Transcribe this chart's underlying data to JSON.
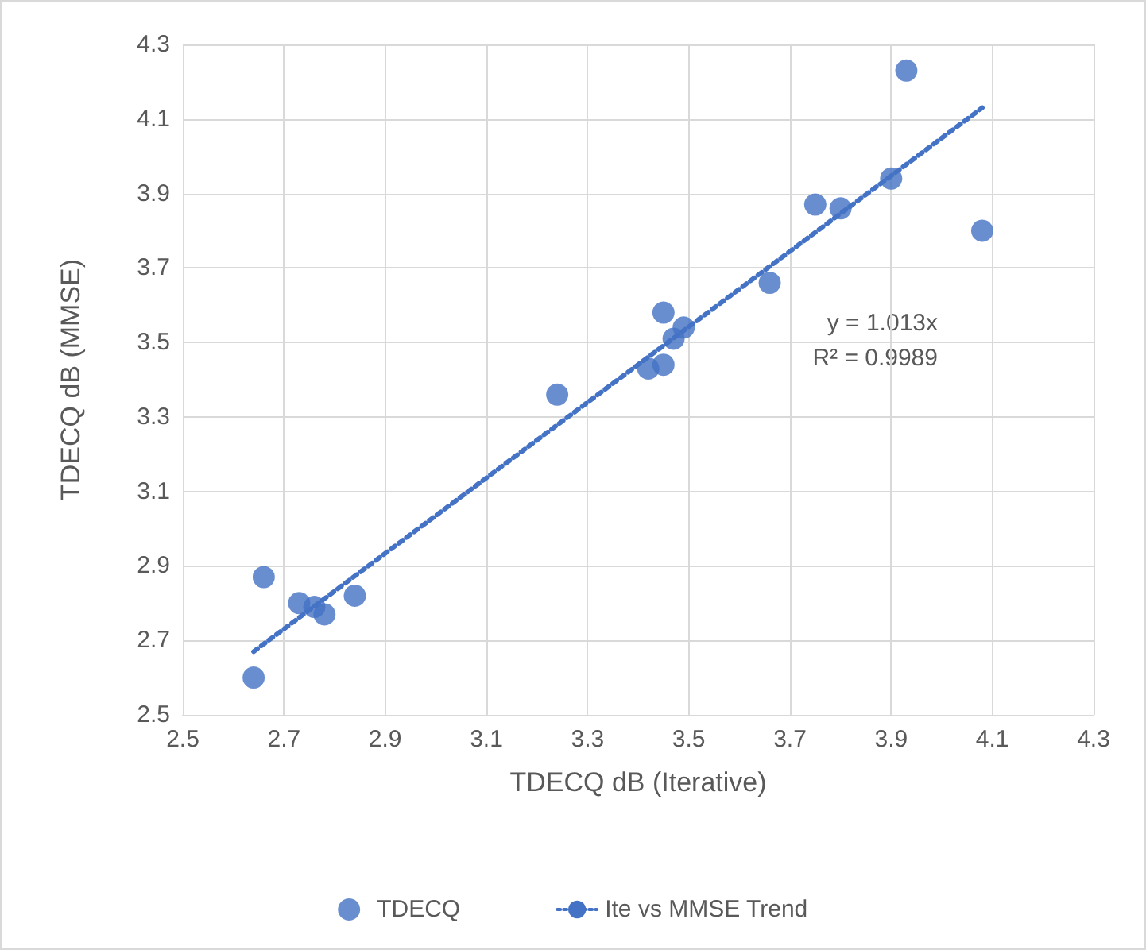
{
  "chart_data": {
    "type": "scatter",
    "xlabel": "TDECQ dB (Iterative)",
    "ylabel": "TDECQ dB (MMSE)",
    "xlim": [
      2.5,
      4.3
    ],
    "xticks": [
      2.5,
      2.7,
      2.9,
      3.1,
      3.3,
      3.5,
      3.7,
      3.9,
      4.1,
      4.3
    ],
    "ylim": [
      2.5,
      4.3
    ],
    "yticks": [
      2.5,
      2.7,
      2.9,
      3.1,
      3.3,
      3.5,
      3.7,
      3.9,
      4.1,
      4.3
    ],
    "grid": true,
    "legend": "bottom",
    "marker": "circle",
    "annotations": [
      "y = 1.013x",
      "R² = 0.9989"
    ],
    "series": [
      {
        "name": "TDECQ",
        "color": "#4472c4",
        "x": [
          2.64,
          2.66,
          2.73,
          2.76,
          2.78,
          2.84,
          3.24,
          3.42,
          3.45,
          3.45,
          3.47,
          3.49,
          3.66,
          3.75,
          3.8,
          3.9,
          3.93,
          4.08
        ],
        "values": [
          2.6,
          2.87,
          2.8,
          2.79,
          2.77,
          2.82,
          3.36,
          3.43,
          3.44,
          3.58,
          3.51,
          3.54,
          3.66,
          3.87,
          3.86,
          3.94,
          4.23,
          3.8
        ]
      },
      {
        "name": "Ite vs MMSE Trend",
        "type": "line",
        "line_style": "dotted",
        "marker": "none",
        "color": "#4472c4",
        "x": [
          2.64,
          4.08
        ],
        "values": [
          2.67,
          4.13
        ]
      }
    ]
  }
}
